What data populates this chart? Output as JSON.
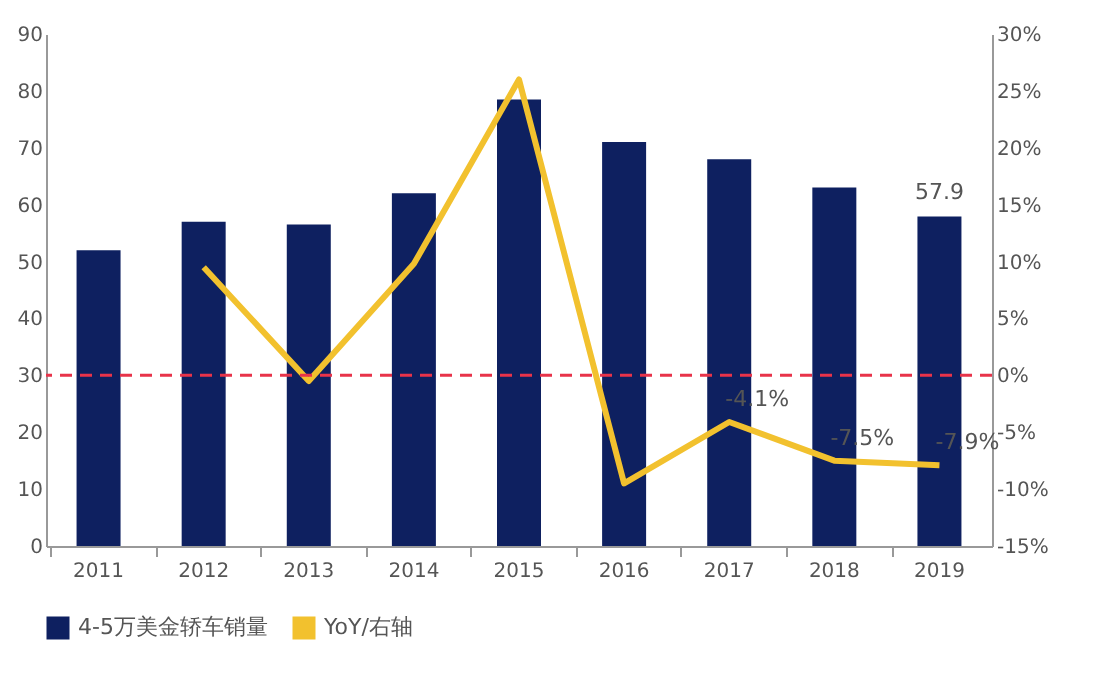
{
  "chart_data": {
    "type": "bar",
    "categories": [
      "2011",
      "2012",
      "2013",
      "2014",
      "2015",
      "2016",
      "2017",
      "2018",
      "2019"
    ],
    "series": [
      {
        "name": "4-5万美金轿车销量",
        "color": "#0e2060",
        "values": [
          52,
          57,
          56.5,
          62,
          78.5,
          71,
          68,
          63,
          57.9
        ],
        "value_labels": [
          null,
          null,
          null,
          null,
          null,
          null,
          null,
          null,
          "57.9"
        ]
      },
      {
        "name": "YoY/右轴",
        "type": "line",
        "axis": "y2",
        "color": "#f2c12e",
        "values": [
          null,
          9.5,
          -0.5,
          9.8,
          26,
          -9.5,
          -4.1,
          -7.5,
          -7.9
        ],
        "value_labels": [
          null,
          null,
          null,
          null,
          null,
          null,
          "-4.1%",
          "-7.5%",
          "-7.9%"
        ]
      }
    ],
    "ylim": [
      0,
      90
    ],
    "yticks": [
      0,
      10,
      20,
      30,
      40,
      50,
      60,
      70,
      80,
      90
    ],
    "y2lim": [
      -15,
      30
    ],
    "y2ticks": [
      {
        "value": -15,
        "label": "-15%"
      },
      {
        "value": -10,
        "label": "-10%"
      },
      {
        "value": -5,
        "label": "-5%"
      },
      {
        "value": 0,
        "label": "0%"
      },
      {
        "value": 5,
        "label": "5%"
      },
      {
        "value": 10,
        "label": "10%"
      },
      {
        "value": 15,
        "label": "15%"
      },
      {
        "value": 20,
        "label": "20%"
      },
      {
        "value": 25,
        "label": "25%"
      },
      {
        "value": 30,
        "label": "30%"
      }
    ],
    "ref_lines": [
      {
        "axis": "y2",
        "value": 0,
        "color": "#e8334a",
        "line_style": "dashed"
      }
    ],
    "legend": "bottom",
    "grid": false,
    "marker": "none",
    "line_style": "solid"
  }
}
